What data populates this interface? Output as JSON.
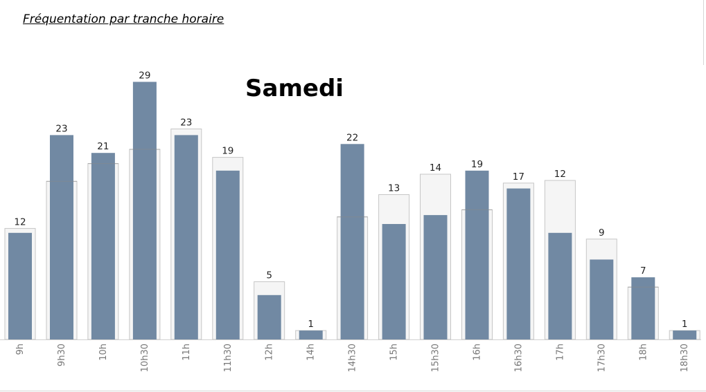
{
  "header": {
    "title": "Fréquentation par tranche horaire"
  },
  "chart_data": {
    "type": "bar",
    "title": "Samedi",
    "xlabel": "",
    "ylabel": "",
    "ylim": [
      0,
      30
    ],
    "grid": false,
    "categories": [
      "9h",
      "9h30",
      "10h",
      "10h30",
      "11h",
      "11h30",
      "12h",
      "14h",
      "14h30",
      "15h",
      "15h30",
      "16h",
      "16h30",
      "17h",
      "17h30",
      "18h",
      "18h30"
    ],
    "series": [
      {
        "values": [
          12,
          23,
          21,
          29,
          23,
          19,
          5,
          1,
          22,
          13,
          14,
          19,
          17,
          12,
          9,
          7,
          1
        ],
        "color": "#7189a3"
      },
      {
        "values": [
          12.5,
          17.8,
          19.8,
          21.4,
          23.7,
          20.5,
          6.5,
          1.0,
          13.8,
          16.3,
          18.6,
          14.6,
          17.6,
          17.9,
          11.3,
          5.9,
          1.0
        ],
        "color": "#f5f5f5",
        "stroke": "#c6c6c6"
      }
    ]
  }
}
